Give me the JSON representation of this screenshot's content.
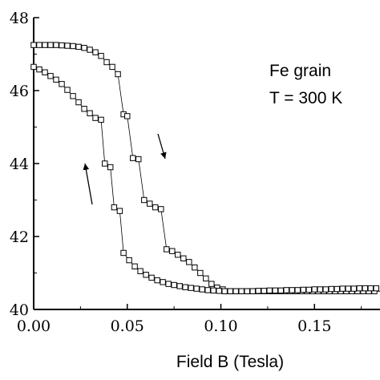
{
  "chart_data": {
    "type": "scatter",
    "title": "",
    "xlabel": "Field B (Tesla)",
    "ylabel": "",
    "xlim": [
      0.0,
      0.185
    ],
    "ylim": [
      40,
      48
    ],
    "x_ticks": [
      0.0,
      0.05,
      0.1,
      0.15
    ],
    "x_tick_labels": [
      "0.00",
      "0.05",
      "0.10",
      "0.15"
    ],
    "y_ticks": [
      40,
      42,
      44,
      46,
      48
    ],
    "y_tick_labels": [
      "40",
      "42",
      "44",
      "46",
      "48"
    ],
    "grid": false,
    "legend": "none",
    "marker": "open-square",
    "annotations": [
      {
        "text": "Fe grain"
      },
      {
        "text": "T = 300 K"
      }
    ],
    "arrows": [
      {
        "direction": "down",
        "branch": "decreasing"
      },
      {
        "direction": "up",
        "branch": "increasing"
      }
    ],
    "series": [
      {
        "x": [
          0.0,
          0.003,
          0.006,
          0.009,
          0.012,
          0.015,
          0.018,
          0.021,
          0.024,
          0.027,
          0.03,
          0.033,
          0.036,
          0.039,
          0.042,
          0.045,
          0.048,
          0.05,
          0.053,
          0.056,
          0.059,
          0.062,
          0.065,
          0.068,
          0.071,
          0.074,
          0.077,
          0.08,
          0.083,
          0.086,
          0.089,
          0.092,
          0.095,
          0.098,
          0.101,
          0.104,
          0.107,
          0.11,
          0.113,
          0.116,
          0.119,
          0.122,
          0.125,
          0.128,
          0.131,
          0.134,
          0.137,
          0.14,
          0.143,
          0.146,
          0.149,
          0.152,
          0.155,
          0.158,
          0.161,
          0.164,
          0.167,
          0.17,
          0.173,
          0.176,
          0.179,
          0.182,
          0.185
        ],
        "y": [
          47.25,
          47.25,
          47.25,
          47.25,
          47.25,
          47.24,
          47.23,
          47.22,
          47.2,
          47.17,
          47.12,
          47.05,
          46.95,
          46.78,
          46.65,
          46.45,
          45.35,
          45.3,
          44.15,
          44.12,
          43.0,
          42.9,
          42.8,
          42.75,
          41.65,
          41.6,
          41.5,
          41.4,
          41.3,
          41.15,
          41.0,
          40.85,
          40.7,
          40.6,
          40.55,
          40.5,
          40.5,
          40.5,
          40.5,
          40.5,
          40.5,
          40.5,
          40.5,
          40.5,
          40.5,
          40.5,
          40.5,
          40.5,
          40.5,
          40.5,
          40.5,
          40.5,
          40.5,
          40.5,
          40.5,
          40.5,
          40.5,
          40.5,
          40.5,
          40.5,
          40.5,
          40.5,
          40.5
        ]
      },
      {
        "x": [
          0.0,
          0.003,
          0.006,
          0.009,
          0.012,
          0.015,
          0.018,
          0.021,
          0.024,
          0.027,
          0.03,
          0.033,
          0.036,
          0.038,
          0.041,
          0.043,
          0.046,
          0.048,
          0.051,
          0.054,
          0.057,
          0.06,
          0.063,
          0.066,
          0.069,
          0.072,
          0.075,
          0.078,
          0.081,
          0.084,
          0.087,
          0.09,
          0.093,
          0.096,
          0.099,
          0.102,
          0.105,
          0.108,
          0.111,
          0.114,
          0.117,
          0.12,
          0.123,
          0.126,
          0.129,
          0.132,
          0.135,
          0.138,
          0.141,
          0.144,
          0.147,
          0.15,
          0.153,
          0.156,
          0.159,
          0.162,
          0.165,
          0.168,
          0.171,
          0.174,
          0.177,
          0.18,
          0.183
        ],
        "y": [
          46.65,
          46.58,
          46.5,
          46.4,
          46.3,
          46.18,
          46.02,
          45.85,
          45.68,
          45.5,
          45.38,
          45.25,
          45.2,
          44.0,
          43.9,
          42.8,
          42.7,
          41.55,
          41.35,
          41.18,
          41.05,
          40.95,
          40.87,
          40.8,
          40.75,
          40.7,
          40.67,
          40.64,
          40.61,
          40.59,
          40.57,
          40.55,
          40.53,
          40.52,
          40.51,
          40.5,
          40.5,
          40.5,
          40.5,
          40.5,
          40.5,
          40.51,
          40.51,
          40.52,
          40.52,
          40.52,
          40.53,
          40.53,
          40.53,
          40.54,
          40.54,
          40.55,
          40.55,
          40.55,
          40.56,
          40.56,
          40.57,
          40.57,
          40.57,
          40.58,
          40.58,
          40.58,
          40.58
        ]
      }
    ]
  }
}
